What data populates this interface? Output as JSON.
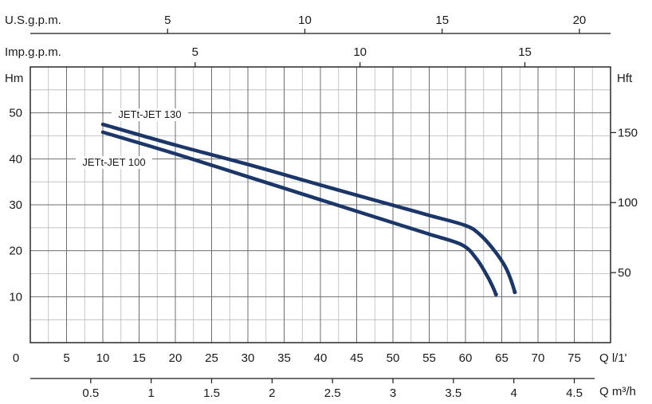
{
  "chart_data": {
    "type": "line",
    "title": "",
    "left_axis_label": "Hm",
    "right_axis_label": "Hft",
    "ylim": [
      0,
      60
    ],
    "left_ticks": [
      "10",
      "20",
      "30",
      "40",
      "50"
    ],
    "left_tick_values": [
      10,
      20,
      30,
      40,
      50
    ],
    "right_ticks": [
      "50",
      "100",
      "150"
    ],
    "right_tick_values": [
      50,
      100,
      150
    ],
    "xlim": [
      0,
      80
    ],
    "x_label_lpm": "Q  l/1'",
    "x_ticks_lpm": [
      "0",
      "5",
      "10",
      "15",
      "20",
      "25",
      "30",
      "35",
      "40",
      "45",
      "50",
      "55",
      "60",
      "65",
      "70",
      "75"
    ],
    "x_tick_values_lpm": [
      0,
      5,
      10,
      15,
      20,
      25,
      30,
      35,
      40,
      45,
      50,
      55,
      60,
      65,
      70,
      75
    ],
    "x_label_m3h": "Q  m³/h",
    "x_ticks_m3h": [
      "0.5",
      "1",
      "1.5",
      "2",
      "2.5",
      "3",
      "3.5",
      "4",
      "4.5"
    ],
    "x_tick_values_m3h": [
      0.5,
      1,
      1.5,
      2,
      2.5,
      3,
      3.5,
      4,
      4.5
    ],
    "x_label_usgpm": "U.S.g.p.m.",
    "x_ticks_usgpm": [
      "5",
      "10",
      "15",
      "20"
    ],
    "x_tick_values_usgpm": [
      5,
      10,
      15,
      20
    ],
    "x_label_impgpm": "Imp.g.p.m.",
    "x_ticks_impgpm": [
      "5",
      "10",
      "15"
    ],
    "x_tick_values_impgpm": [
      5,
      10,
      15
    ],
    "series": [
      {
        "name": "JETt-JET 130",
        "color": "#1b3668",
        "x": [
          10,
          20,
          30,
          40,
          50,
          55,
          60,
          62,
          64,
          65.5,
          66.3,
          66.8
        ],
        "y": [
          47.5,
          43,
          38.8,
          34.3,
          29.9,
          27.7,
          25.5,
          23.5,
          20,
          16.5,
          13.5,
          11
        ]
      },
      {
        "name": "JETt-JET 100",
        "color": "#1b3668",
        "x": [
          10,
          20,
          30,
          40,
          50,
          55,
          59.5,
          61.5,
          63,
          63.8,
          64.2
        ],
        "y": [
          45.8,
          41.1,
          36.1,
          31.1,
          26.1,
          23.6,
          21.3,
          18.3,
          14.5,
          12,
          10.5
        ]
      }
    ]
  }
}
